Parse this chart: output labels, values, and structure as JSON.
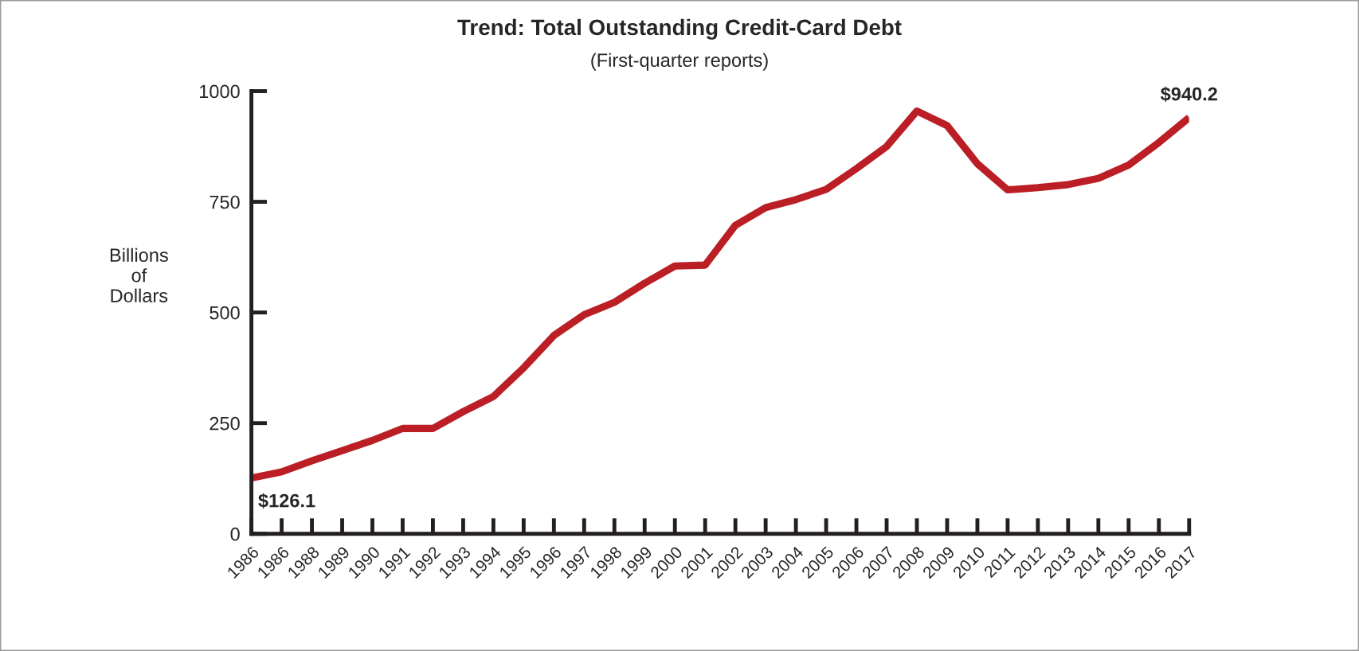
{
  "chart_data": {
    "type": "line",
    "title": "Trend: Total Outstanding Credit-Card Debt",
    "subtitle": "(First-quarter reports)",
    "ylabel": "Billions\nof\nDollars",
    "categories": [
      "1986",
      "1986",
      "1988",
      "1989",
      "1990",
      "1991",
      "1992",
      "1993",
      "1994",
      "1995",
      "1996",
      "1997",
      "1998",
      "1999",
      "2000",
      "2001",
      "2002",
      "2003",
      "2004",
      "2005",
      "2006",
      "2007",
      "2008",
      "2009",
      "2010",
      "2011",
      "2012",
      "2013",
      "2014",
      "2015",
      "2016",
      "2017"
    ],
    "series": [
      {
        "color": "#bb1e24",
        "values": [
          126.1,
          140,
          165,
          188,
          211,
          238,
          238,
          276,
          310,
          375,
          448,
          495,
          523,
          566,
          605,
          607,
          697,
          737,
          755,
          778,
          825,
          875,
          955,
          922,
          836,
          777,
          782,
          789,
          803,
          833,
          884,
          940.2
        ],
        "value_labels": [
          "$126.1",
          null,
          null,
          null,
          null,
          null,
          null,
          null,
          null,
          null,
          null,
          null,
          null,
          null,
          null,
          null,
          null,
          null,
          null,
          null,
          null,
          null,
          null,
          null,
          null,
          null,
          null,
          null,
          null,
          null,
          null,
          "$940.2"
        ]
      }
    ],
    "ylim": [
      0,
      1000
    ],
    "yticks": [
      0,
      250,
      500,
      750,
      1000
    ],
    "grid": false,
    "legend": false,
    "marker": "none",
    "line_style": "solid"
  }
}
